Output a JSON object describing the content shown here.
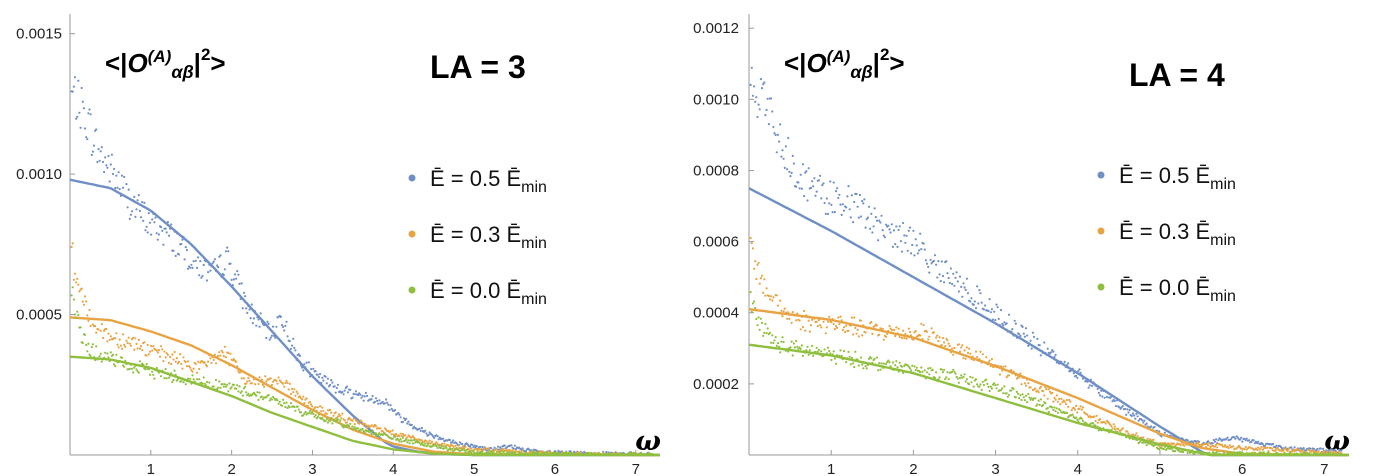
{
  "chart_data": [
    {
      "type": "scatter",
      "panel_title": "LA = 3",
      "ylabel": "<|O(A)αβ|²>",
      "xlabel": "ω",
      "xlim": [
        0,
        7.3
      ],
      "ylim": [
        0,
        0.00157
      ],
      "x_ticks": [
        1,
        2,
        3,
        4,
        5,
        6,
        7
      ],
      "y_ticks": [
        0.0005,
        0.001,
        0.0015
      ],
      "y_tick_labels": [
        "0.0005",
        "0.0010",
        "0.0015"
      ],
      "legend": [
        "Ē = 0.5 Ēmin",
        "Ē = 0.3 Ēmin",
        "Ē = 0.0 Ēmin"
      ],
      "series": [
        {
          "name": "Ē = 0.5 Ēmin",
          "color": "#6f8fc6",
          "points_x": [
            0.05,
            0.2,
            0.35,
            0.5,
            0.75,
            1.0,
            1.25,
            1.5,
            1.75,
            1.95,
            2.2,
            2.5,
            2.6,
            2.8,
            3.0,
            3.3,
            3.6,
            3.9,
            4.1,
            4.4,
            4.8,
            5.2,
            5.45,
            5.8,
            6.5,
            7.2
          ],
          "points_y": [
            0.00128,
            0.0012,
            0.00108,
            0.00102,
            0.0009,
            0.00082,
            0.00078,
            0.0007,
            0.00064,
            0.0007,
            0.00052,
            0.00042,
            0.0005,
            0.00036,
            0.00029,
            0.00024,
            0.00021,
            0.00019,
            0.00013,
            8e-05,
            4e-05,
            2e-05,
            3e-05,
            1e-05,
            5e-06,
            2e-06
          ],
          "fit_x": [
            0.0,
            0.5,
            1.0,
            1.5,
            2.0,
            2.5,
            3.0,
            3.5,
            3.9,
            4.0,
            4.3,
            4.6,
            5.0,
            7.2
          ],
          "fit_y": [
            0.00098,
            0.00095,
            0.00087,
            0.00075,
            0.0006,
            0.00044,
            0.00028,
            0.00014,
            4.5e-05,
            3e-05,
            1.2e-05,
            3e-06,
            0.0,
            0.0
          ]
        },
        {
          "name": "Ē = 0.3 Ēmin",
          "color": "#e8a443",
          "points_x": [
            0.0,
            0.05,
            0.15,
            0.3,
            0.5,
            0.8,
            1.0,
            1.3,
            1.6,
            1.9,
            2.0,
            2.2,
            2.6,
            3.0,
            3.5,
            4.0,
            4.5,
            5.0,
            6.0,
            7.2
          ],
          "points_y": [
            0.0008,
            0.00066,
            0.00055,
            0.00047,
            0.00042,
            0.0004,
            0.00037,
            0.00034,
            0.00031,
            0.00037,
            0.00033,
            0.00026,
            0.00027,
            0.00017,
            0.00012,
            8e-05,
            4e-05,
            2e-05,
            5e-06,
            1e-06
          ],
          "fit_x": [
            0.0,
            0.5,
            1.0,
            1.5,
            2.0,
            2.5,
            3.0,
            3.5,
            4.0,
            4.5,
            5.0,
            7.2
          ],
          "fit_y": [
            0.00049,
            0.00048,
            0.00044,
            0.00039,
            0.00032,
            0.00024,
            0.00016,
            9e-05,
            4e-05,
            1.2e-05,
            2e-06,
            0.0
          ]
        },
        {
          "name": "Ē = 0.0 Ēmin",
          "color": "#8fbf3f",
          "points_x": [
            0.0,
            0.05,
            0.15,
            0.3,
            0.5,
            0.8,
            1.0,
            1.3,
            1.6,
            2.0,
            2.5,
            3.0,
            3.5,
            4.0,
            4.5,
            5.0,
            6.0,
            7.2
          ],
          "points_y": [
            0.00065,
            0.00052,
            0.00042,
            0.00036,
            0.00034,
            0.00031,
            0.0003,
            0.00028,
            0.00026,
            0.00024,
            0.0002,
            0.00014,
            0.0001,
            6e-05,
            3e-05,
            1e-05,
            3e-06,
            1e-06
          ],
          "fit_x": [
            0.0,
            0.5,
            1.0,
            1.5,
            2.0,
            2.5,
            3.0,
            3.5,
            4.0,
            4.5,
            5.0,
            7.2
          ],
          "fit_y": [
            0.00035,
            0.00034,
            0.00031,
            0.00026,
            0.00021,
            0.00015,
            0.0001,
            5e-05,
            2e-05,
            5e-06,
            0.0,
            0.0
          ]
        }
      ]
    },
    {
      "type": "scatter",
      "panel_title": "LA = 4",
      "ylabel": "<|O(A)αβ|²>",
      "xlabel": "ω",
      "xlim": [
        0,
        7.3
      ],
      "ylim": [
        0,
        0.00124
      ],
      "x_ticks": [
        1,
        2,
        3,
        4,
        5,
        6,
        7
      ],
      "y_ticks": [
        0.0002,
        0.0004,
        0.0006,
        0.0008,
        0.001,
        0.0012
      ],
      "y_tick_labels": [
        "0.0002",
        "0.0004",
        "0.0006",
        "0.0008",
        "0.0010",
        "0.0012"
      ],
      "legend": [
        "Ē = 0.5 Ēmin",
        "Ē = 0.3 Ēmin",
        "Ē = 0.0 Ēmin"
      ],
      "series": [
        {
          "name": "Ē = 0.5 Ēmin",
          "color": "#6f8fc6",
          "points_x": [
            0.05,
            0.2,
            0.4,
            0.6,
            0.9,
            1.2,
            1.5,
            1.8,
            2.0,
            2.2,
            2.5,
            3.0,
            3.5,
            4.0,
            4.5,
            5.0,
            5.5,
            5.9,
            6.5,
            7.2
          ],
          "points_y": [
            0.00104,
            0.00098,
            0.00088,
            0.00079,
            0.00073,
            0.00071,
            0.00066,
            0.00061,
            0.00061,
            0.00055,
            0.00049,
            0.0004,
            0.00031,
            0.00023,
            0.00014,
            6e-05,
            3e-05,
            5e-05,
            2e-05,
            1e-05
          ],
          "fit_x": [
            0.0,
            1.0,
            2.0,
            3.0,
            4.0,
            5.0,
            5.5,
            5.6,
            7.2
          ],
          "fit_y": [
            0.00075,
            0.00063,
            0.0005,
            0.00037,
            0.00023,
            8e-05,
            1e-05,
            0.0,
            0.0
          ]
        },
        {
          "name": "Ē = 0.3 Ēmin",
          "color": "#e8a443",
          "points_x": [
            0.0,
            0.05,
            0.15,
            0.3,
            0.5,
            0.8,
            1.0,
            1.5,
            2.0,
            2.1,
            2.5,
            3.0,
            3.5,
            4.0,
            4.5,
            5.0,
            5.5,
            6.0,
            7.2
          ],
          "points_y": [
            0.00063,
            0.00056,
            0.00049,
            0.00043,
            0.00039,
            0.00037,
            0.00037,
            0.00035,
            0.00034,
            0.00035,
            0.0003,
            0.00025,
            0.00019,
            0.00013,
            7e-05,
            3e-05,
            3e-05,
            2e-05,
            5e-06
          ],
          "fit_x": [
            0.0,
            1.0,
            2.0,
            3.0,
            4.0,
            5.0,
            5.5,
            6.0,
            7.2
          ],
          "fit_y": [
            0.00041,
            0.00038,
            0.00033,
            0.00025,
            0.00016,
            6e-05,
            2e-05,
            3e-06,
            0.0
          ]
        },
        {
          "name": "Ē = 0.0 Ēmin",
          "color": "#8fbf3f",
          "points_x": [
            0.0,
            0.05,
            0.15,
            0.3,
            0.5,
            0.8,
            1.0,
            1.5,
            2.0,
            2.5,
            3.0,
            3.5,
            4.0,
            4.5,
            5.0,
            5.5,
            6.0,
            7.2
          ],
          "points_y": [
            0.00047,
            0.00042,
            0.00036,
            0.00032,
            0.0003,
            0.00029,
            0.00028,
            0.00026,
            0.00024,
            0.00022,
            0.00019,
            0.00015,
            0.0001,
            6e-05,
            2e-05,
            5e-06,
            3e-06,
            1e-06
          ],
          "fit_x": [
            0.0,
            1.0,
            2.0,
            3.0,
            4.0,
            5.0,
            5.6,
            7.2
          ],
          "fit_y": [
            0.00031,
            0.00028,
            0.00023,
            0.00016,
            9e-05,
            3e-05,
            0.0,
            0.0
          ]
        }
      ]
    }
  ]
}
